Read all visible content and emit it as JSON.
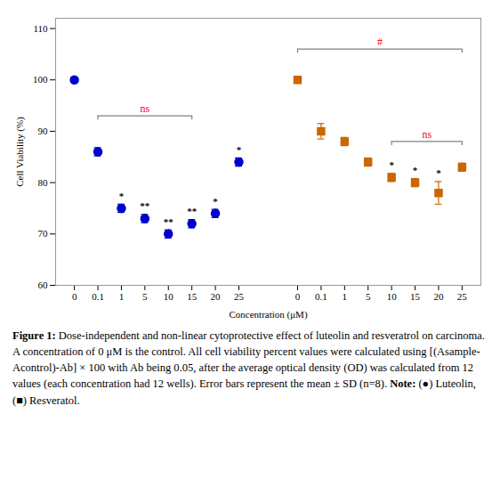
{
  "chart_data": {
    "type": "scatter",
    "categories": [
      "0",
      "0.1",
      "1",
      "5",
      "10",
      "15",
      "20",
      "25",
      "0",
      "0.1",
      "1",
      "5",
      "10",
      "15",
      "20",
      "25"
    ],
    "series": [
      {
        "color": "#0000CC",
        "marker": "circle",
        "values": [
          100,
          86,
          75,
          73,
          70,
          72,
          74,
          84,
          null,
          null,
          null,
          null,
          null,
          null,
          null,
          null
        ],
        "errors": [
          0.5,
          0.8,
          0.8,
          0.8,
          0.8,
          0.8,
          0.8,
          0.8,
          null,
          null,
          null,
          null,
          null,
          null,
          null,
          null
        ],
        "annotations": [
          null,
          null,
          "*",
          "**",
          "**",
          "**",
          "*",
          "*",
          null,
          null,
          null,
          null,
          null,
          null,
          null,
          null
        ]
      },
      {
        "color": "#CC6600",
        "marker": "square",
        "values": [
          null,
          null,
          null,
          null,
          null,
          null,
          null,
          null,
          100,
          90,
          88,
          84,
          81,
          80,
          78,
          83
        ],
        "errors": [
          null,
          null,
          null,
          null,
          null,
          null,
          null,
          null,
          0.3,
          1.5,
          0.8,
          0.8,
          0.8,
          0.8,
          2.2,
          0.8
        ],
        "annotations": [
          null,
          null,
          null,
          null,
          null,
          null,
          null,
          null,
          null,
          null,
          null,
          null,
          "*",
          "*",
          "*",
          null
        ]
      }
    ],
    "brackets": [
      {
        "text": "ns",
        "from": 1,
        "to": 5,
        "y": 93,
        "color": "red"
      },
      {
        "text": "#",
        "from": 8,
        "to": 15,
        "y": 106,
        "color": "red"
      },
      {
        "text": "ns",
        "from": 12,
        "to": 15,
        "y": 88,
        "color": "red"
      }
    ],
    "xlabel": "Concentration (μM)",
    "ylabel": "Cell Viability (%)",
    "ylim": [
      60,
      112
    ],
    "yticks": [
      60,
      70,
      80,
      90,
      100,
      110
    ],
    "caption": [
      {
        "text": "Figure 1:",
        "bold": true
      },
      {
        "text": " Dose-independent and non-linear cytoprotective effect of luteolin and resveratrol on carcinoma. A concentration of 0 μM is the control. All cell viability percent values were calculated using [(Asample-Acontrol)-Ab] × 100 with Ab being 0.05, after the average optical density (OD) was calculated from 12 values (each concentration had 12 wells). Error bars represent the mean ± SD (n=8). ",
        "bold": false
      },
      {
        "text": "Note:",
        "bold": true
      },
      {
        "text": " (●) Luteolin, (■) Resveratol.",
        "bold": false
      }
    ]
  }
}
